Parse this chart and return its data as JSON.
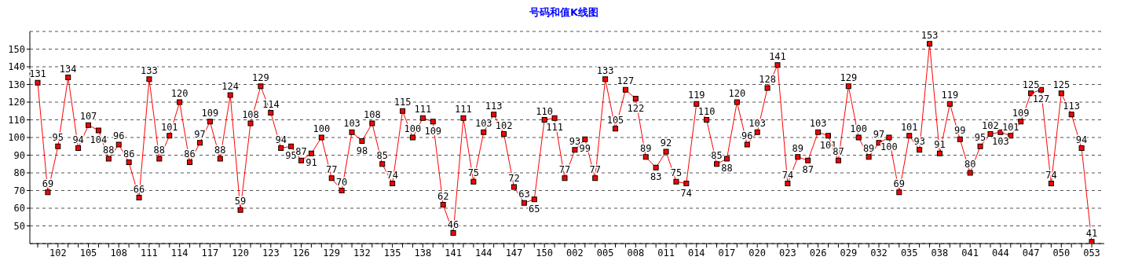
{
  "chart_data": {
    "type": "line",
    "title": "号码和值K线图",
    "categories": [
      null,
      null,
      "102",
      null,
      null,
      "105",
      null,
      null,
      "108",
      null,
      null,
      "111",
      null,
      null,
      "114",
      null,
      null,
      "117",
      null,
      null,
      "120",
      null,
      null,
      "123",
      null,
      null,
      "126",
      null,
      null,
      "129",
      null,
      null,
      "132",
      null,
      null,
      "135",
      null,
      null,
      "138",
      null,
      null,
      "141",
      null,
      null,
      "144",
      null,
      null,
      "147",
      null,
      null,
      "150",
      null,
      null,
      "002",
      null,
      null,
      "005",
      null,
      null,
      "008",
      null,
      null,
      "011",
      null,
      null,
      "014",
      null,
      null,
      "017",
      null,
      null,
      "020",
      null,
      null,
      "023",
      null,
      null,
      "026",
      null,
      null,
      "029",
      null,
      null,
      "032",
      null,
      null,
      "035",
      null,
      null,
      "038",
      null,
      null,
      "041",
      null,
      null,
      "044",
      null,
      null,
      "047",
      null,
      null,
      "050",
      null,
      null,
      "053"
    ],
    "values": [
      131,
      69,
      95,
      134,
      94,
      107,
      104,
      88,
      96,
      86,
      66,
      133,
      88,
      101,
      120,
      86,
      97,
      109,
      88,
      124,
      59,
      108,
      129,
      114,
      94,
      95,
      87,
      91,
      100,
      77,
      70,
      103,
      98,
      108,
      85,
      74,
      115,
      100,
      111,
      109,
      62,
      46,
      111,
      75,
      103,
      113,
      102,
      72,
      63,
      65,
      110,
      111,
      77,
      93,
      99,
      77,
      133,
      105,
      127,
      122,
      89,
      83,
      92,
      75,
      74,
      119,
      110,
      85,
      88,
      120,
      96,
      103,
      128,
      141,
      74,
      89,
      87,
      103,
      101,
      87,
      129,
      100,
      89,
      97,
      100,
      69,
      101,
      93,
      153,
      91,
      119,
      99,
      80,
      95,
      102,
      103,
      101,
      109,
      125,
      127,
      74,
      125,
      113,
      94,
      41
    ],
    "color": "#ff0000",
    "ylim": [
      40,
      160
    ],
    "yticks": [
      50,
      60,
      70,
      80,
      90,
      100,
      110,
      120,
      130,
      140,
      150
    ],
    "grid": "y",
    "data_labels": true,
    "marker": "square",
    "line_style": "solid"
  }
}
